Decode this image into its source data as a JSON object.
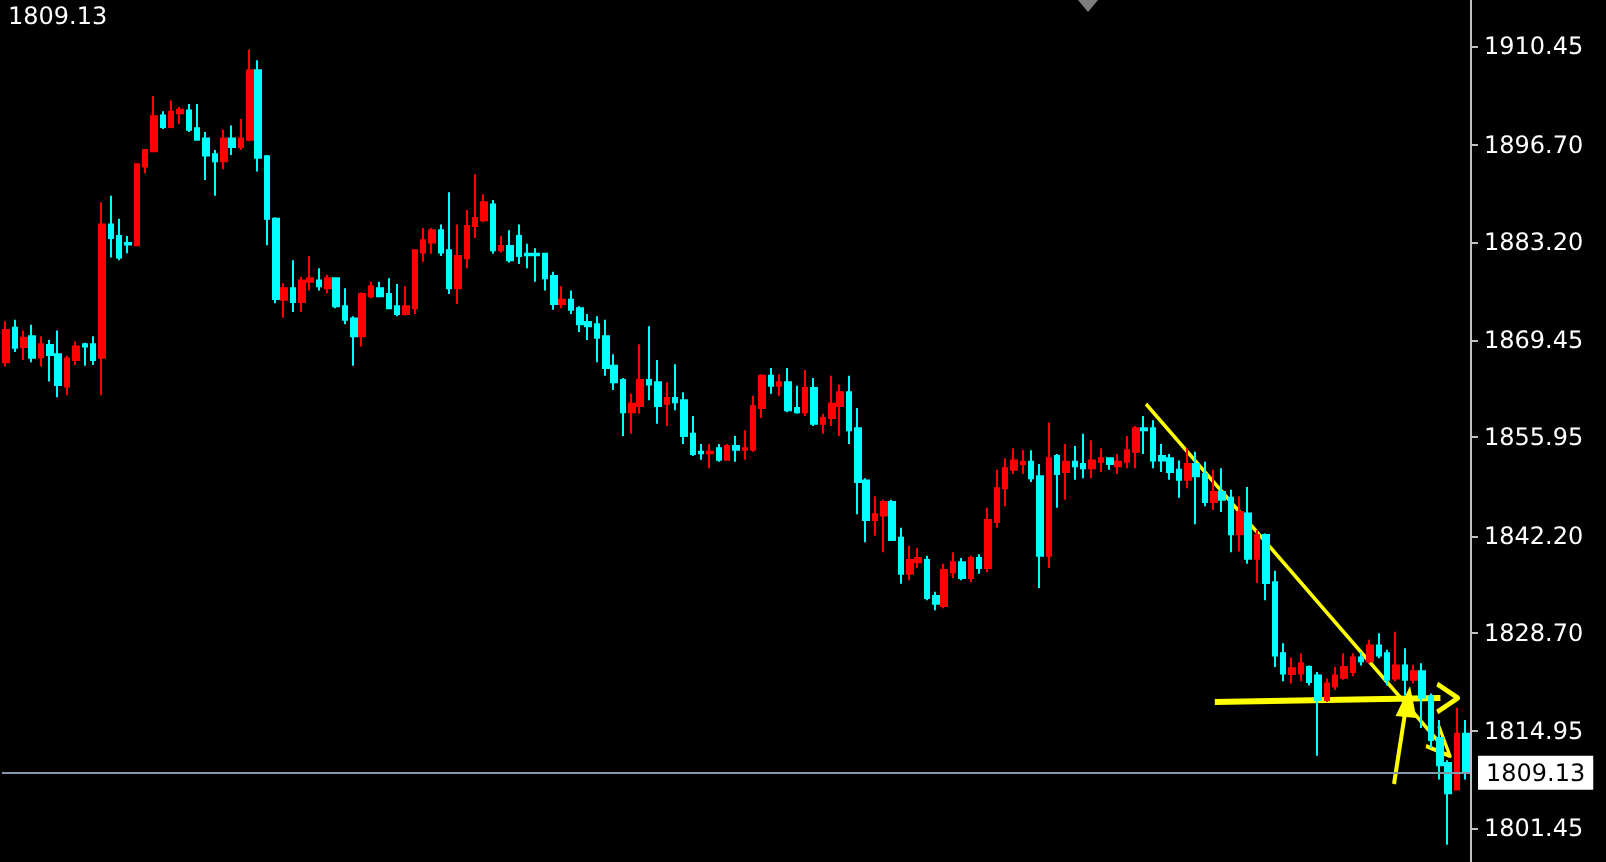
{
  "chart_data": {
    "type": "candlestick",
    "categories": [
      null,
      null,
      null,
      null,
      null,
      null,
      null,
      null,
      null,
      null,
      null,
      null,
      null,
      null,
      null,
      null,
      null,
      null,
      null,
      null,
      null,
      null,
      null,
      null,
      null,
      null,
      null,
      null,
      null,
      null,
      null,
      null,
      null,
      null,
      null,
      null,
      null,
      null,
      null,
      null,
      null,
      null,
      null,
      null,
      null,
      null,
      null,
      null,
      null,
      null,
      null,
      null,
      null,
      null,
      null,
      null,
      null,
      null,
      null,
      null,
      null,
      null,
      null,
      null,
      null,
      null,
      null,
      null,
      null,
      null,
      null,
      null,
      null,
      null,
      null,
      null,
      null,
      null,
      null,
      null,
      null,
      null,
      null,
      null,
      null,
      null,
      null,
      null,
      null,
      null,
      null,
      null,
      null,
      null,
      null,
      null,
      null,
      null,
      null,
      null,
      null,
      null,
      null,
      null,
      null,
      null,
      null,
      null,
      null,
      null,
      null,
      null,
      null,
      null,
      null,
      null,
      null,
      null,
      null,
      null,
      null,
      null,
      null,
      null,
      null,
      null,
      null,
      null,
      null,
      null,
      null,
      null,
      null,
      null,
      null,
      null,
      null,
      null,
      null,
      null,
      null,
      null,
      null,
      null,
      null,
      null,
      null,
      null,
      null,
      null,
      null,
      null,
      null,
      null,
      null,
      null,
      null,
      null,
      null,
      null,
      null,
      null,
      null,
      null,
      null,
      null,
      null,
      null,
      null
    ],
    "ohlc": [
      [
        1866.4,
        1872.1,
        1865.8,
        1870.9
      ],
      [
        1871.2,
        1872.3,
        1867.8,
        1868.4
      ],
      [
        1868.5,
        1870.8,
        1866.7,
        1869.8
      ],
      [
        1870.0,
        1871.6,
        1866.4,
        1867.0
      ],
      [
        1867.1,
        1870.0,
        1865.8,
        1868.9
      ],
      [
        1868.8,
        1869.5,
        1863.7,
        1867.4
      ],
      [
        1867.5,
        1870.8,
        1861.5,
        1863.2
      ],
      [
        1863.0,
        1867.3,
        1861.8,
        1866.9
      ],
      [
        1866.7,
        1869.3,
        1866.0,
        1868.6
      ],
      [
        1868.9,
        1869.1,
        1865.9,
        1868.6
      ],
      [
        1868.9,
        1870.0,
        1866.0,
        1866.7
      ],
      [
        1867.0,
        1888.7,
        1861.8,
        1885.6
      ],
      [
        1885.6,
        1889.6,
        1881.0,
        1883.7
      ],
      [
        1884.0,
        1886.4,
        1880.6,
        1881.0
      ],
      [
        1883.0,
        1884.0,
        1881.6,
        1882.8
      ],
      [
        1882.7,
        1894.1,
        1882.6,
        1894.0
      ],
      [
        1893.7,
        1896.1,
        1892.7,
        1896.0
      ],
      [
        1895.8,
        1903.5,
        1895.7,
        1900.7
      ],
      [
        1900.8,
        1901.4,
        1898.9,
        1899.2
      ],
      [
        1899.2,
        1902.9,
        1899.0,
        1901.3
      ],
      [
        1901.1,
        1902.0,
        1899.6,
        1901.6
      ],
      [
        1901.5,
        1902.4,
        1898.5,
        1898.8
      ],
      [
        1899.0,
        1902.4,
        1897.3,
        1897.4
      ],
      [
        1897.6,
        1898.5,
        1891.8,
        1895.2
      ],
      [
        1895.4,
        1896.0,
        1889.6,
        1894.4
      ],
      [
        1894.4,
        1898.8,
        1893.3,
        1897.6
      ],
      [
        1897.6,
        1899.4,
        1895.3,
        1896.4
      ],
      [
        1896.4,
        1900.3,
        1896.0,
        1897.6
      ],
      [
        1897.4,
        1910.0,
        1897.2,
        1907.1
      ],
      [
        1907.1,
        1908.5,
        1893.0,
        1894.9
      ],
      [
        1895.1,
        1895.3,
        1882.7,
        1886.4
      ],
      [
        1886.4,
        1886.6,
        1874.6,
        1875.2
      ],
      [
        1875.1,
        1877.4,
        1872.6,
        1876.7
      ],
      [
        1876.7,
        1880.6,
        1873.4,
        1874.8
      ],
      [
        1874.8,
        1878.3,
        1873.4,
        1877.8
      ],
      [
        1877.6,
        1881.2,
        1876.4,
        1878.1
      ],
      [
        1877.8,
        1879.5,
        1876.4,
        1877.0
      ],
      [
        1876.7,
        1878.6,
        1876.0,
        1878.1
      ],
      [
        1878.1,
        1878.2,
        1873.9,
        1874.2
      ],
      [
        1874.2,
        1876.7,
        1871.7,
        1872.3
      ],
      [
        1872.5,
        1872.8,
        1865.9,
        1870.0
      ],
      [
        1870.0,
        1876.1,
        1868.6,
        1875.9
      ],
      [
        1875.6,
        1877.6,
        1875.3,
        1877.0
      ],
      [
        1876.7,
        1877.6,
        1875.4,
        1875.6
      ],
      [
        1875.9,
        1878.1,
        1873.8,
        1873.9
      ],
      [
        1874.2,
        1877.3,
        1872.8,
        1873.1
      ],
      [
        1873.1,
        1877.0,
        1872.9,
        1874.2
      ],
      [
        1873.9,
        1882.1,
        1873.1,
        1882.0
      ],
      [
        1881.7,
        1885.1,
        1880.4,
        1883.4
      ],
      [
        1883.1,
        1885.1,
        1881.5,
        1884.8
      ],
      [
        1884.8,
        1885.6,
        1881.2,
        1881.7
      ],
      [
        1882.0,
        1890.1,
        1875.9,
        1876.7
      ],
      [
        1876.7,
        1885.6,
        1874.5,
        1881.2
      ],
      [
        1880.9,
        1887.6,
        1879.5,
        1885.4
      ],
      [
        1885.4,
        1892.6,
        1883.7,
        1886.5
      ],
      [
        1886.2,
        1889.8,
        1885.9,
        1888.7
      ],
      [
        1888.4,
        1889.0,
        1881.5,
        1882.0
      ],
      [
        1882.0,
        1884.0,
        1881.7,
        1882.6
      ],
      [
        1882.6,
        1884.8,
        1880.3,
        1880.6
      ],
      [
        1884.0,
        1885.6,
        1880.1,
        1881.2
      ],
      [
        1881.5,
        1882.9,
        1879.5,
        1881.3
      ],
      [
        1881.5,
        1882.3,
        1877.6,
        1881.3
      ],
      [
        1881.5,
        1881.6,
        1876.4,
        1878.1
      ],
      [
        1878.4,
        1879.0,
        1873.7,
        1874.5
      ],
      [
        1874.5,
        1877.0,
        1873.9,
        1875.1
      ],
      [
        1875.1,
        1876.4,
        1873.1,
        1873.7
      ],
      [
        1873.9,
        1874.2,
        1870.6,
        1871.7
      ],
      [
        1872.0,
        1873.1,
        1869.5,
        1871.4
      ],
      [
        1871.7,
        1872.8,
        1866.4,
        1869.8
      ],
      [
        1870.0,
        1872.3,
        1864.5,
        1865.6
      ],
      [
        1865.9,
        1867.5,
        1862.5,
        1863.6
      ],
      [
        1863.9,
        1864.2,
        1856.1,
        1859.4
      ],
      [
        1859.4,
        1862.0,
        1856.4,
        1860.6
      ],
      [
        1860.3,
        1868.9,
        1859.2,
        1863.9
      ],
      [
        1863.9,
        1871.4,
        1861.1,
        1863.3
      ],
      [
        1863.6,
        1866.7,
        1857.8,
        1860.3
      ],
      [
        1860.6,
        1863.6,
        1857.5,
        1861.4
      ],
      [
        1861.4,
        1866.1,
        1859.7,
        1860.8
      ],
      [
        1861.1,
        1862.2,
        1855.0,
        1856.1
      ],
      [
        1856.4,
        1858.9,
        1853.3,
        1853.6
      ],
      [
        1853.9,
        1855.0,
        1852.8,
        1853.7
      ],
      [
        1853.7,
        1855.0,
        1851.6,
        1853.9
      ],
      [
        1854.4,
        1855.0,
        1852.5,
        1852.8
      ],
      [
        1852.8,
        1855.0,
        1852.7,
        1854.7
      ],
      [
        1854.7,
        1856.1,
        1852.5,
        1854.2
      ],
      [
        1854.2,
        1856.9,
        1852.8,
        1854.4
      ],
      [
        1854.2,
        1861.7,
        1853.9,
        1860.3
      ],
      [
        1860.0,
        1864.7,
        1858.6,
        1864.5
      ],
      [
        1864.5,
        1865.6,
        1862.0,
        1863.1
      ],
      [
        1863.1,
        1864.7,
        1861.7,
        1863.6
      ],
      [
        1863.6,
        1865.6,
        1859.4,
        1859.7
      ],
      [
        1860.0,
        1863.1,
        1859.2,
        1859.4
      ],
      [
        1859.4,
        1865.3,
        1858.9,
        1862.8
      ],
      [
        1862.8,
        1864.2,
        1857.5,
        1857.8
      ],
      [
        1857.8,
        1859.2,
        1856.4,
        1858.6
      ],
      [
        1858.6,
        1864.5,
        1857.5,
        1860.6
      ],
      [
        1860.3,
        1863.3,
        1856.1,
        1862.2
      ],
      [
        1862.2,
        1864.5,
        1855.0,
        1856.9
      ],
      [
        1857.2,
        1860.0,
        1845.2,
        1849.7
      ],
      [
        1849.9,
        1850.2,
        1841.3,
        1844.4
      ],
      [
        1844.4,
        1847.7,
        1842.2,
        1845.2
      ],
      [
        1845.0,
        1847.2,
        1839.9,
        1846.9
      ],
      [
        1846.9,
        1847.2,
        1841.5,
        1841.6
      ],
      [
        1841.9,
        1843.3,
        1835.5,
        1836.9
      ],
      [
        1836.9,
        1840.8,
        1836.0,
        1838.8
      ],
      [
        1838.5,
        1840.5,
        1837.7,
        1839.1
      ],
      [
        1838.8,
        1839.4,
        1833.2,
        1833.5
      ],
      [
        1833.8,
        1834.4,
        1831.8,
        1832.7
      ],
      [
        1832.4,
        1838.3,
        1832.1,
        1837.4
      ],
      [
        1837.1,
        1839.9,
        1836.3,
        1838.5
      ],
      [
        1838.5,
        1839.1,
        1836.0,
        1836.3
      ],
      [
        1836.3,
        1839.4,
        1835.7,
        1839.1
      ],
      [
        1839.1,
        1839.6,
        1836.9,
        1837.7
      ],
      [
        1837.7,
        1846.1,
        1837.1,
        1844.4
      ],
      [
        1844.1,
        1851.4,
        1843.3,
        1848.8
      ],
      [
        1848.8,
        1853.0,
        1846.3,
        1851.6
      ],
      [
        1851.4,
        1854.4,
        1850.8,
        1852.7
      ],
      [
        1852.2,
        1854.1,
        1850.8,
        1852.5
      ],
      [
        1852.5,
        1854.1,
        1849.7,
        1850.2
      ],
      [
        1850.5,
        1852.2,
        1834.9,
        1839.4
      ],
      [
        1839.4,
        1858.0,
        1837.7,
        1853.0
      ],
      [
        1853.3,
        1853.6,
        1846.1,
        1850.8
      ],
      [
        1851.1,
        1855.0,
        1847.2,
        1852.5
      ],
      [
        1852.5,
        1854.7,
        1850.0,
        1851.9
      ],
      [
        1852.2,
        1856.4,
        1850.2,
        1851.6
      ],
      [
        1851.6,
        1855.5,
        1850.2,
        1852.7
      ],
      [
        1852.5,
        1854.4,
        1851.1,
        1853.0
      ],
      [
        1853.0,
        1853.1,
        1851.4,
        1852.2
      ],
      [
        1851.9,
        1853.6,
        1850.8,
        1852.5
      ],
      [
        1852.5,
        1856.1,
        1851.6,
        1854.1
      ],
      [
        1853.9,
        1857.5,
        1851.6,
        1857.2
      ],
      [
        1857.2,
        1858.9,
        1853.6,
        1856.9
      ],
      [
        1857.2,
        1858.3,
        1851.6,
        1852.7
      ],
      [
        1853.3,
        1855.0,
        1851.1,
        1852.7
      ],
      [
        1853.0,
        1853.6,
        1850.0,
        1851.1
      ],
      [
        1851.4,
        1852.7,
        1847.5,
        1850.0
      ],
      [
        1850.0,
        1854.4,
        1848.8,
        1852.2
      ],
      [
        1852.2,
        1853.9,
        1843.8,
        1850.5
      ],
      [
        1850.8,
        1852.5,
        1846.3,
        1846.9
      ],
      [
        1846.9,
        1851.4,
        1845.8,
        1848.3
      ],
      [
        1848.3,
        1851.6,
        1845.5,
        1847.2
      ],
      [
        1847.5,
        1848.6,
        1839.9,
        1842.4
      ],
      [
        1842.4,
        1847.7,
        1840.0,
        1845.5
      ],
      [
        1845.3,
        1849.0,
        1838.3,
        1839.0
      ],
      [
        1839.0,
        1843.0,
        1835.6,
        1842.3
      ],
      [
        1842.3,
        1842.5,
        1833.2,
        1835.6
      ],
      [
        1835.7,
        1837.3,
        1823.9,
        1825.5
      ],
      [
        1825.8,
        1827.2,
        1821.9,
        1823.0
      ],
      [
        1822.9,
        1825.2,
        1821.6,
        1823.7
      ],
      [
        1823.0,
        1825.8,
        1821.9,
        1824.4
      ],
      [
        1823.9,
        1824.1,
        1821.3,
        1821.8
      ],
      [
        1822.7,
        1823.2,
        1811.5,
        1819.3
      ],
      [
        1819.3,
        1822.3,
        1819.0,
        1821.6
      ],
      [
        1821.2,
        1823.9,
        1820.7,
        1822.7
      ],
      [
        1822.4,
        1825.8,
        1822.1,
        1823.9
      ],
      [
        1823.2,
        1825.8,
        1822.6,
        1825.2
      ],
      [
        1825.2,
        1826.0,
        1824.1,
        1824.7
      ],
      [
        1824.7,
        1827.7,
        1824.4,
        1826.9
      ],
      [
        1826.9,
        1828.6,
        1825.1,
        1825.5
      ],
      [
        1825.8,
        1826.3,
        1821.3,
        1822.1
      ],
      [
        1822.3,
        1828.8,
        1821.9,
        1824.1
      ],
      [
        1824.1,
        1826.5,
        1819.9,
        1822.1
      ],
      [
        1822.1,
        1824.2,
        1821.6,
        1823.3
      ],
      [
        1823.3,
        1824.4,
        1815.4,
        1819.6
      ],
      [
        1819.8,
        1820.2,
        1812.6,
        1813.7
      ],
      [
        1814.0,
        1816.5,
        1808.2,
        1810.2
      ],
      [
        1810.5,
        1810.9,
        1799.1,
        1806.3
      ],
      [
        1806.8,
        1818.2,
        1806.7,
        1814.6
      ],
      [
        1814.6,
        1816.5,
        1808.2,
        1809.1
      ]
    ],
    "colors": [
      "#ff0000",
      "#00ffff",
      "#ff0000",
      "#00ffff",
      "#ff0000",
      "#00ffff",
      "#00ffff",
      "#ff0000",
      "#ff0000",
      "#00ffff",
      "#00ffff",
      "#ff0000",
      "#00ffff",
      "#00ffff",
      "#00ffff",
      "#ff0000",
      "#ff0000",
      "#ff0000",
      "#00ffff",
      "#ff0000",
      "#ff0000",
      "#00ffff",
      "#00ffff",
      "#00ffff",
      "#00ffff",
      "#ff0000",
      "#00ffff",
      "#ff0000",
      "#ff0000",
      "#00ffff",
      "#00ffff",
      "#00ffff",
      "#ff0000",
      "#00ffff",
      "#ff0000",
      "#ff0000",
      "#00ffff",
      "#ff0000",
      "#00ffff",
      "#00ffff",
      "#00ffff",
      "#ff0000",
      "#ff0000",
      "#00ffff",
      "#00ffff",
      "#00ffff",
      "#ff0000",
      "#ff0000",
      "#ff0000",
      "#ff0000",
      "#00ffff",
      "#00ffff",
      "#ff0000",
      "#ff0000",
      "#ff0000",
      "#ff0000",
      "#00ffff",
      "#ff0000",
      "#00ffff",
      "#00ffff",
      "#00ffff",
      "#00ffff",
      "#00ffff",
      "#00ffff",
      "#ff0000",
      "#00ffff",
      "#00ffff",
      "#00ffff",
      "#00ffff",
      "#00ffff",
      "#00ffff",
      "#00ffff",
      "#ff0000",
      "#ff0000",
      "#00ffff",
      "#00ffff",
      "#ff0000",
      "#00ffff",
      "#00ffff",
      "#00ffff",
      "#00ffff",
      "#ff0000",
      "#00ffff",
      "#ff0000",
      "#00ffff",
      "#ff0000",
      "#ff0000",
      "#ff0000",
      "#00ffff",
      "#ff0000",
      "#00ffff",
      "#00ffff",
      "#ff0000",
      "#00ffff",
      "#ff0000",
      "#ff0000",
      "#ff0000",
      "#00ffff",
      "#00ffff",
      "#00ffff",
      "#ff0000",
      "#ff0000",
      "#00ffff",
      "#00ffff",
      "#ff0000",
      "#ff0000",
      "#00ffff",
      "#00ffff",
      "#ff0000",
      "#ff0000",
      "#00ffff",
      "#ff0000",
      "#00ffff",
      "#ff0000",
      "#ff0000",
      "#ff0000",
      "#ff0000",
      "#ff0000",
      "#00ffff",
      "#00ffff",
      "#ff0000",
      "#00ffff",
      "#ff0000",
      "#00ffff",
      "#00ffff",
      "#ff0000",
      "#ff0000",
      "#00ffff",
      "#ff0000",
      "#ff0000",
      "#ff0000",
      "#00ffff",
      "#00ffff",
      "#00ffff",
      "#00ffff",
      "#00ffff",
      "#ff0000",
      "#00ffff",
      "#00ffff",
      "#ff0000",
      "#00ffff",
      "#00ffff",
      "#ff0000",
      "#00ffff",
      "#ff0000",
      "#00ffff",
      "#00ffff",
      "#00ffff",
      "#ff0000",
      "#ff0000",
      "#00ffff",
      "#00ffff",
      "#ff0000",
      "#ff0000",
      "#ff0000",
      "#ff0000",
      "#00ffff",
      "#ff0000",
      "#00ffff",
      "#00ffff",
      "#ff0000",
      "#00ffff",
      "#ff0000",
      "#00ffff",
      "#00ffff",
      "#00ffff",
      "#00ffff",
      "#ff0000",
      "#00ffff"
    ],
    "ylim": [
      1796.7,
      1916.9
    ],
    "yticks": [
      1801.45,
      1814.95,
      {
        "value": 1828.7,
        "label": "1828.70"
      },
      {
        "value": 1842.2,
        "label": "1842.20"
      },
      1855.95,
      1869.45,
      {
        "value": 1883.2,
        "label": "1883.20"
      },
      {
        "value": 1896.7,
        "label": "1896.70"
      },
      1910.45
    ],
    "tick_labels": "y",
    "ref_lines": [
      {
        "axis": "y",
        "value": 1809.13,
        "label": "1809.13",
        "color": "#8898aa"
      }
    ],
    "annotations": [
      "1809.13"
    ]
  }
}
